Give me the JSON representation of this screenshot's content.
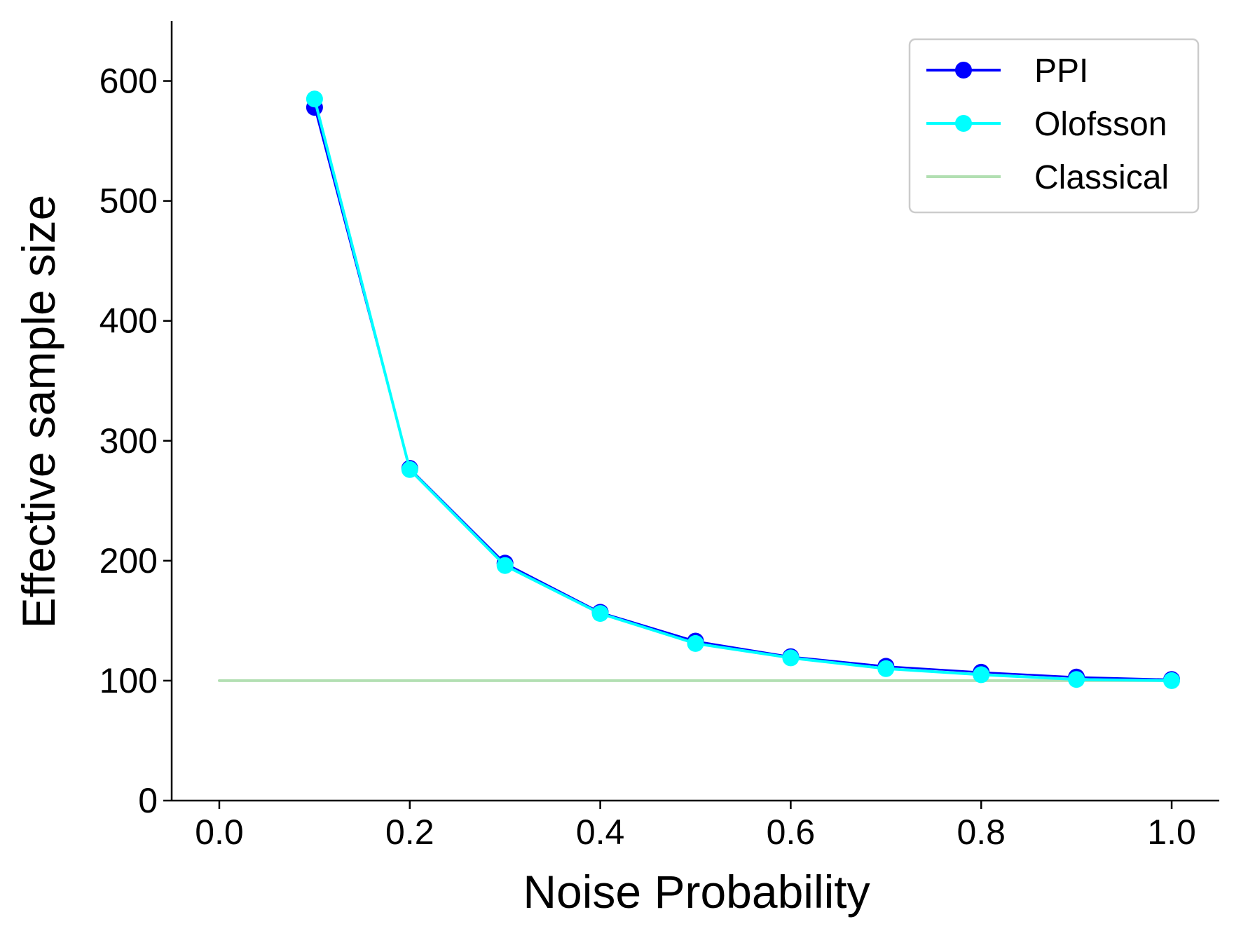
{
  "chart_data": {
    "type": "line",
    "title": "",
    "xlabel": "Noise Probability",
    "ylabel": "Effective sample size",
    "xlim": [
      -0.05,
      1.05
    ],
    "ylim": [
      0,
      650
    ],
    "xticks": [
      0.0,
      0.2,
      0.4,
      0.6,
      0.8,
      1.0
    ],
    "xtick_labels": [
      "0.0",
      "0.2",
      "0.4",
      "0.6",
      "0.8",
      "1.0"
    ],
    "yticks": [
      0,
      100,
      200,
      300,
      400,
      500,
      600
    ],
    "ytick_labels": [
      "0",
      "100",
      "200",
      "300",
      "400",
      "500",
      "600"
    ],
    "grid": false,
    "legend_position": "top-right",
    "x": [
      0.1,
      0.2,
      0.3,
      0.4,
      0.5,
      0.6,
      0.7,
      0.8,
      0.9,
      1.0
    ],
    "series": [
      {
        "name": "PPI",
        "color": "#0000ff",
        "marker": "circle",
        "values": [
          578,
          277,
          198,
          157,
          133,
          120,
          112,
          107,
          103,
          101
        ]
      },
      {
        "name": "Olofsson",
        "color": "#00ffff",
        "marker": "circle",
        "values": [
          585,
          276,
          196,
          156,
          131,
          119,
          110,
          105,
          101,
          100
        ]
      },
      {
        "name": "Classical",
        "color": "#b2dfb2",
        "marker": "none",
        "x": [
          0.0,
          1.0
        ],
        "values": [
          100,
          100
        ]
      }
    ]
  }
}
